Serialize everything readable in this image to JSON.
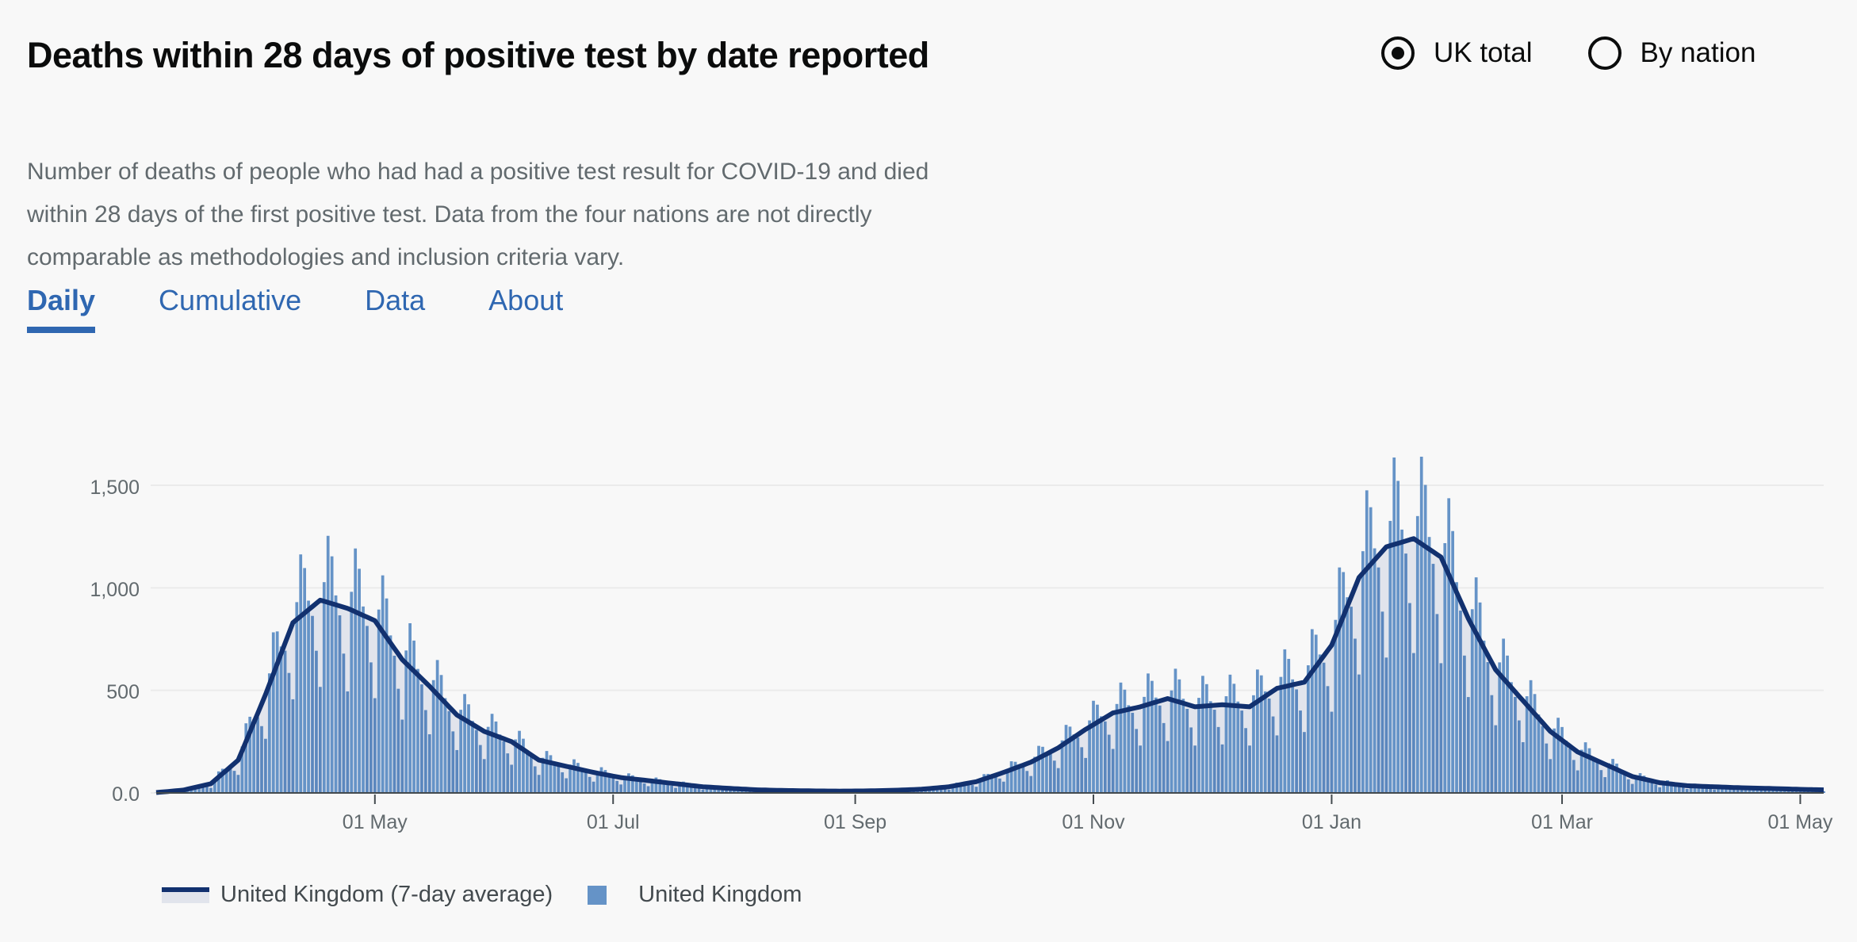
{
  "header": {
    "title": "Deaths within 28 days of positive test by date reported",
    "description": "Number of deaths of people who had had a positive test result for COVID-19 and died within 28 days of the first positive test. Data from the four nations are not directly comparable as methodologies and inclusion criteria vary."
  },
  "radios": [
    {
      "label": "UK total",
      "selected": true
    },
    {
      "label": "By nation",
      "selected": false
    }
  ],
  "tabs": [
    {
      "label": "Daily",
      "active": true
    },
    {
      "label": "Cumulative",
      "active": false
    },
    {
      "label": "Data",
      "active": false
    },
    {
      "label": "About",
      "active": false
    }
  ],
  "colors": {
    "bar": "#5b87be",
    "bar_light": "#6593c7",
    "line": "#12316f",
    "area": "#e1e4ec",
    "tab": "#2f67b1"
  },
  "legend": {
    "average": "United Kingdom (7-day average)",
    "daily": "United Kingdom"
  },
  "chart_data": {
    "type": "bar",
    "title": "Deaths within 28 days of positive test by date reported",
    "xlabel": "",
    "ylabel": "",
    "ylim": [
      0,
      1500
    ],
    "yticks": [
      "0.0",
      "500",
      "1,000",
      "1,500"
    ],
    "ytick_values": [
      0,
      500,
      1000,
      1500
    ],
    "grid": true,
    "legend_position": "bottom-left",
    "x_start": "2020-03-06",
    "x_end": "2021-05-07",
    "xticks": [
      {
        "date": "2020-05-01",
        "label": "01 May"
      },
      {
        "date": "2020-07-01",
        "label": "01 Jul"
      },
      {
        "date": "2020-09-01",
        "label": "01 Sep"
      },
      {
        "date": "2020-11-01",
        "label": "01 Nov"
      },
      {
        "date": "2021-01-01",
        "label": "01 Jan"
      },
      {
        "date": "2021-03-01",
        "label": "01 Mar"
      },
      {
        "date": "2021-05-01",
        "label": "01 May"
      }
    ],
    "series": [
      {
        "name": "United Kingdom (7-day average)",
        "type": "line",
        "weekly_dates": [
          "2020-03-06",
          "2020-03-13",
          "2020-03-20",
          "2020-03-27",
          "2020-04-03",
          "2020-04-10",
          "2020-04-17",
          "2020-04-24",
          "2020-05-01",
          "2020-05-08",
          "2020-05-15",
          "2020-05-22",
          "2020-05-29",
          "2020-06-05",
          "2020-06-12",
          "2020-06-19",
          "2020-06-26",
          "2020-07-03",
          "2020-07-10",
          "2020-07-17",
          "2020-07-24",
          "2020-07-31",
          "2020-08-07",
          "2020-08-14",
          "2020-08-21",
          "2020-08-28",
          "2020-09-04",
          "2020-09-11",
          "2020-09-18",
          "2020-09-25",
          "2020-10-02",
          "2020-10-09",
          "2020-10-16",
          "2020-10-23",
          "2020-10-30",
          "2020-11-06",
          "2020-11-13",
          "2020-11-20",
          "2020-11-27",
          "2020-12-04",
          "2020-12-11",
          "2020-12-18",
          "2020-12-25",
          "2021-01-01",
          "2021-01-08",
          "2021-01-15",
          "2021-01-22",
          "2021-01-29",
          "2021-02-05",
          "2021-02-12",
          "2021-02-19",
          "2021-02-26",
          "2021-03-05",
          "2021-03-12",
          "2021-03-19",
          "2021-03-26",
          "2021-04-02",
          "2021-04-09",
          "2021-04-16",
          "2021-04-23",
          "2021-04-30",
          "2021-05-07"
        ],
        "values": [
          2,
          14,
          45,
          160,
          480,
          830,
          940,
          900,
          840,
          650,
          520,
          380,
          300,
          250,
          160,
          130,
          100,
          75,
          60,
          45,
          30,
          22,
          15,
          12,
          10,
          9,
          10,
          13,
          18,
          30,
          55,
          100,
          150,
          220,
          310,
          390,
          420,
          460,
          420,
          430,
          420,
          510,
          540,
          720,
          1050,
          1200,
          1240,
          1150,
          850,
          600,
          450,
          300,
          200,
          140,
          80,
          50,
          35,
          30,
          25,
          22,
          18,
          15
        ]
      },
      {
        "name": "United Kingdom",
        "type": "bar",
        "weekday_pattern": [
          1.35,
          1.25,
          1.05,
          0.95,
          0.75,
          0.55,
          1.1
        ]
      }
    ]
  }
}
